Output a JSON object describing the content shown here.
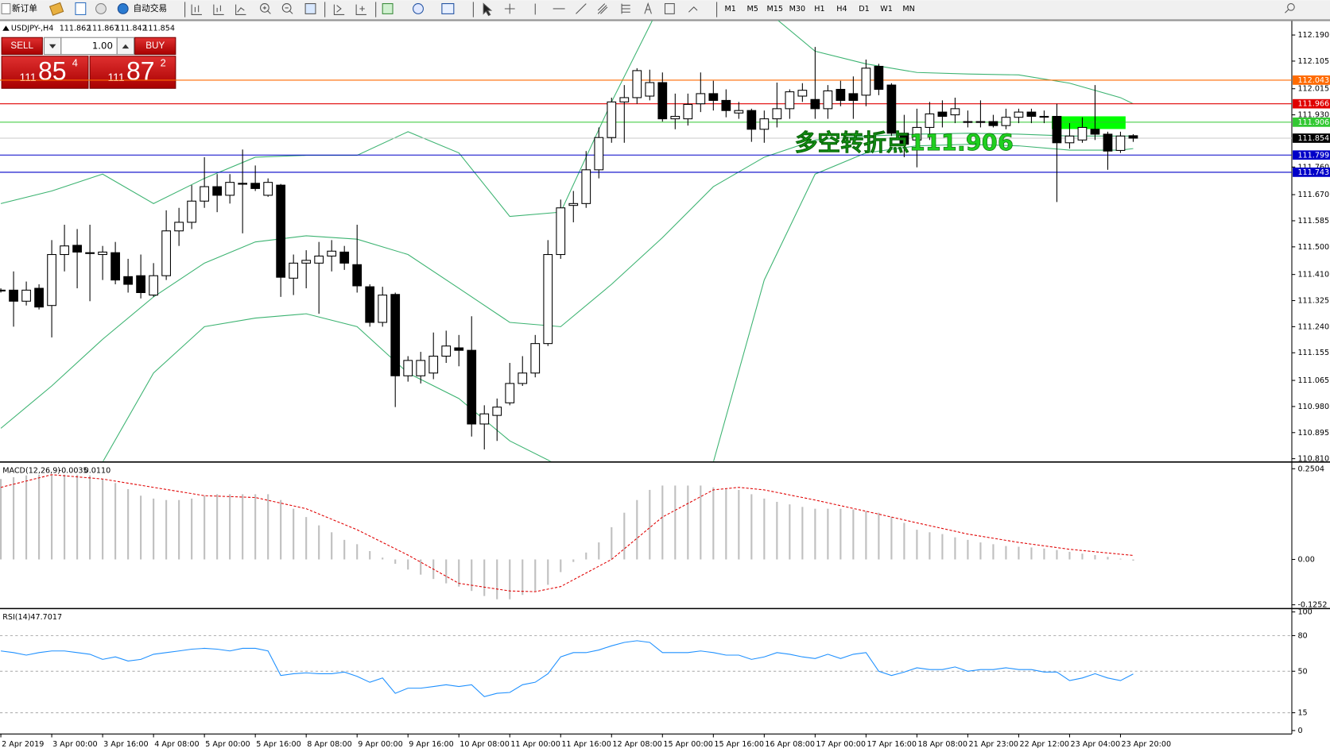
{
  "toolbar": {
    "new_order": "新订单",
    "auto_trading": "自动交易",
    "timeframes": [
      "M1",
      "M5",
      "M15",
      "M30",
      "H1",
      "H4",
      "D1",
      "W1",
      "MN"
    ]
  },
  "trade_panel": {
    "sell": "SELL",
    "buy": "BUY",
    "lots": "1.00",
    "bid": [
      "111",
      "85",
      "4"
    ],
    "ask": [
      "111",
      "87",
      "2"
    ]
  },
  "chart_data": [
    {
      "type": "candlestick",
      "symbol": "USDJPY-,H4",
      "ohlc": [
        111.862,
        111.867,
        111.842,
        111.854
      ],
      "up_color": "#ffffff",
      "down_color": "#000000",
      "categories": [
        "2 Apr 2019",
        null,
        null,
        null,
        "3 Apr 00:00",
        null,
        null,
        null,
        "3 Apr 16:00",
        null,
        null,
        null,
        "4 Apr 08:00",
        null,
        null,
        null,
        "5 Apr 00:00",
        null,
        null,
        null,
        "5 Apr 16:00",
        null,
        null,
        null,
        "8 Apr 08:00",
        null,
        null,
        null,
        "9 Apr 00:00",
        null,
        null,
        null,
        "9 Apr 16:00",
        null,
        null,
        null,
        "10 Apr 08:00",
        null,
        null,
        null,
        "11 Apr 00:00",
        null,
        null,
        null,
        "11 Apr 16:00",
        null,
        null,
        null,
        "12 Apr 08:00",
        null,
        null,
        null,
        "15 Apr 00:00",
        null,
        null,
        null,
        "15 Apr 16:00",
        null,
        null,
        null,
        "16 Apr 08:00",
        null,
        null,
        null,
        "17 Apr 00:00",
        null,
        null,
        null,
        "17 Apr 16:00",
        null,
        null,
        null,
        "18 Apr 08:00",
        null,
        null,
        null,
        "21 Apr 23:00",
        null,
        null,
        null,
        "22 Apr 12:00",
        null,
        null,
        null,
        "23 Apr 04:00",
        null,
        null,
        null,
        "23 Apr 20:00",
        null
      ],
      "candles": [
        [
          111.359,
          111.365,
          111.351,
          111.359
        ],
        [
          111.359,
          111.42,
          111.24,
          111.323
        ],
        [
          111.323,
          111.387,
          111.309,
          111.359
        ],
        [
          111.365,
          111.378,
          111.296,
          111.304
        ],
        [
          111.309,
          111.522,
          111.205,
          111.475
        ],
        [
          111.475,
          111.572,
          111.42,
          111.503
        ],
        [
          111.505,
          111.558,
          111.365,
          111.483
        ],
        [
          111.481,
          111.572,
          111.323,
          111.481
        ],
        [
          111.475,
          111.503,
          111.392,
          111.483
        ],
        [
          111.481,
          111.516,
          111.378,
          111.392
        ],
        [
          111.403,
          111.461,
          111.351,
          111.378
        ],
        [
          111.406,
          111.475,
          111.332,
          111.351
        ],
        [
          111.343,
          111.447,
          111.337,
          111.406
        ],
        [
          111.406,
          111.619,
          111.392,
          111.552
        ],
        [
          111.552,
          111.627,
          111.503,
          111.58
        ],
        [
          111.58,
          111.701,
          111.558,
          111.649
        ],
        [
          111.649,
          111.792,
          111.627,
          111.696
        ],
        [
          111.696,
          111.737,
          111.613,
          111.668
        ],
        [
          111.668,
          111.737,
          111.641,
          111.71
        ],
        [
          111.707,
          111.817,
          111.544,
          111.704
        ],
        [
          111.707,
          111.765,
          111.682,
          111.69
        ],
        [
          111.668,
          111.723,
          111.663,
          111.71
        ],
        [
          111.701,
          111.705,
          111.337,
          111.401
        ],
        [
          111.398,
          111.475,
          111.343,
          111.447
        ],
        [
          111.447,
          111.489,
          111.365,
          111.456
        ],
        [
          111.447,
          111.516,
          111.282,
          111.47
        ],
        [
          111.47,
          111.522,
          111.42,
          111.486
        ],
        [
          111.483,
          111.503,
          111.425,
          111.447
        ],
        [
          111.442,
          111.572,
          111.351,
          111.373
        ],
        [
          111.37,
          111.378,
          111.24,
          111.254
        ],
        [
          111.254,
          111.37,
          111.24,
          111.343
        ],
        [
          111.345,
          111.351,
          110.978,
          111.08
        ],
        [
          111.08,
          111.144,
          111.061,
          111.13
        ],
        [
          111.08,
          111.158,
          111.055,
          111.13
        ],
        [
          111.089,
          111.221,
          111.069,
          111.144
        ],
        [
          111.144,
          111.227,
          111.122,
          111.177
        ],
        [
          111.171,
          111.213,
          111.111,
          111.163
        ],
        [
          111.163,
          111.274,
          110.882,
          110.923
        ],
        [
          110.923,
          110.984,
          110.84,
          110.956
        ],
        [
          110.951,
          111.006,
          110.868,
          110.978
        ],
        [
          110.992,
          111.122,
          110.984,
          111.055
        ],
        [
          111.055,
          111.144,
          111.047,
          111.089
        ],
        [
          111.089,
          111.213,
          111.075,
          111.185
        ],
        [
          111.185,
          111.522,
          111.177,
          111.475
        ],
        [
          111.475,
          111.654,
          111.461,
          111.627
        ],
        [
          111.635,
          111.682,
          111.58,
          111.641
        ],
        [
          111.641,
          111.812,
          111.627,
          111.751
        ],
        [
          111.751,
          111.889,
          111.723,
          111.856
        ],
        [
          111.856,
          111.986,
          111.839,
          111.972
        ],
        [
          111.972,
          112.027,
          111.839,
          111.986
        ],
        [
          111.986,
          112.082,
          111.966,
          112.074
        ],
        [
          111.991,
          112.077,
          111.977,
          112.035
        ],
        [
          112.035,
          112.068,
          111.908,
          111.917
        ],
        [
          111.917,
          111.999,
          111.883,
          111.925
        ],
        [
          111.917,
          111.999,
          111.895,
          111.964
        ],
        [
          111.966,
          112.068,
          111.939,
          111.999
        ],
        [
          111.999,
          112.041,
          111.944,
          111.977
        ],
        [
          111.977,
          112.013,
          111.922,
          111.944
        ],
        [
          111.936,
          111.972,
          111.917,
          111.944
        ],
        [
          111.944,
          111.95,
          111.842,
          111.883
        ],
        [
          111.883,
          111.944,
          111.839,
          111.917
        ],
        [
          111.917,
          112.035,
          111.889,
          111.95
        ],
        [
          111.95,
          112.013,
          111.917,
          112.005
        ],
        [
          111.991,
          112.033,
          111.972,
          112.01
        ],
        [
          111.98,
          112.151,
          111.917,
          111.95
        ],
        [
          111.95,
          112.027,
          111.917,
          112.008
        ],
        [
          112.013,
          112.041,
          111.958,
          111.977
        ],
        [
          111.999,
          112.055,
          111.917,
          111.977
        ],
        [
          111.994,
          112.11,
          111.958,
          112.082
        ],
        [
          112.088,
          112.096,
          111.994,
          112.013
        ],
        [
          112.027,
          112.033,
          111.861,
          111.87
        ],
        [
          111.87,
          111.93,
          111.792,
          111.834
        ],
        [
          111.848,
          111.95,
          111.759,
          111.889
        ],
        [
          111.889,
          111.972,
          111.848,
          111.933
        ],
        [
          111.939,
          111.977,
          111.889,
          111.925
        ],
        [
          111.93,
          111.986,
          111.903,
          111.95
        ],
        [
          111.908,
          111.944,
          111.889,
          111.908
        ],
        [
          111.908,
          111.977,
          111.889,
          111.908
        ],
        [
          111.908,
          111.93,
          111.889,
          111.895
        ],
        [
          111.895,
          111.95,
          111.883,
          111.922
        ],
        [
          111.922,
          111.95,
          111.903,
          111.939
        ],
        [
          111.939,
          111.95,
          111.903,
          111.925
        ],
        [
          111.925,
          111.944,
          111.903,
          111.925
        ],
        [
          111.925,
          111.966,
          111.646,
          111.839
        ],
        [
          111.839,
          111.903,
          111.82,
          111.861
        ],
        [
          111.848,
          111.922,
          111.839,
          111.889
        ],
        [
          111.883,
          112.027,
          111.848,
          111.867
        ],
        [
          111.867,
          111.875,
          111.751,
          111.812
        ],
        [
          111.814,
          111.875,
          111.806,
          111.861
        ],
        [
          111.862,
          111.867,
          111.842,
          111.854
        ]
      ],
      "bands": {
        "color": "#3cb371",
        "x": [
          0,
          4,
          8,
          12,
          16,
          20,
          24,
          28,
          32,
          36,
          40,
          44,
          48,
          52,
          56,
          60,
          64,
          68,
          72,
          76,
          80,
          84,
          88,
          89
        ],
        "upper": [
          111.641,
          111.682,
          111.737,
          111.641,
          111.723,
          111.792,
          111.798,
          111.798,
          111.875,
          111.806,
          111.599,
          111.613,
          111.972,
          112.303,
          112.358,
          112.275,
          112.137,
          112.096,
          112.068,
          112.063,
          112.06,
          112.033,
          111.986,
          111.966
        ],
        "middle": [
          110.909,
          111.047,
          111.199,
          111.337,
          111.447,
          111.516,
          111.536,
          111.525,
          111.475,
          111.365,
          111.254,
          111.24,
          111.378,
          111.53,
          111.696,
          111.792,
          111.848,
          111.861,
          111.867,
          111.87,
          111.867,
          111.861,
          111.861,
          111.861
        ],
        "lower": [
          110.592,
          110.675,
          110.799,
          111.089,
          111.24,
          111.268,
          111.282,
          111.24,
          111.089,
          111.006,
          110.868,
          110.785,
          110.592,
          110.371,
          110.799,
          111.392,
          111.737,
          111.806,
          111.829,
          111.834,
          111.829,
          111.815,
          111.815,
          111.82
        ]
      },
      "levels": [
        {
          "value": 112.043,
          "color": "#ff6a00"
        },
        {
          "value": 111.966,
          "color": "#e00000"
        },
        {
          "value": 111.906,
          "color": "#32c832"
        },
        {
          "value": 111.854,
          "color": "#000000",
          "line_color": "#c8c8c8"
        },
        {
          "value": 111.799,
          "color": "#0000c8"
        },
        {
          "value": 111.743,
          "color": "#0000c8"
        }
      ],
      "annotation": {
        "text": "多空转折点111.906",
        "color": "#1fcf1f"
      },
      "ylim": [
        110.802,
        112.237
      ],
      "yticks": [
        {
          "value": 112.19,
          "label": "112.190"
        },
        112.105,
        112.015,
        {
          "value": 111.93,
          "label": "111.930"
        },
        {
          "value": 111.76,
          "label": "111.760"
        },
        {
          "value": 111.67,
          "label": "111.670"
        },
        111.585,
        {
          "value": 111.5,
          "label": "111.500"
        },
        {
          "value": 111.41,
          "label": "111.410"
        },
        111.325,
        {
          "value": 111.24,
          "label": "111.240"
        },
        111.155,
        111.065,
        {
          "value": 110.98,
          "label": "110.980"
        },
        110.895,
        {
          "value": 110.81,
          "label": "110.810"
        }
      ]
    },
    {
      "type": "macd",
      "label": "MACD(12,26,9)",
      "macd_value": -0.0035,
      "signal_value": {
        "value": 0.011,
        "label": "0.0110"
      },
      "bar_color": "#c0c0c0",
      "signal_color": "#e00000",
      "histogram": [
        0.222,
        0.227,
        0.232,
        0.234,
        0.234,
        0.234,
        0.234,
        0.232,
        0.222,
        0.211,
        0.194,
        0.176,
        0.168,
        0.164,
        0.164,
        0.168,
        0.176,
        0.18,
        0.18,
        0.18,
        0.18,
        0.18,
        0.164,
        0.14,
        0.117,
        0.094,
        0.075,
        0.054,
        0.042,
        0.023,
        0.005,
        -0.012,
        -0.028,
        -0.042,
        -0.054,
        -0.066,
        -0.075,
        -0.087,
        -0.101,
        -0.11,
        -0.11,
        -0.098,
        -0.087,
        -0.07,
        -0.035,
        -0.007,
        0.019,
        0.047,
        0.089,
        0.129,
        0.164,
        0.192,
        0.204,
        0.204,
        0.204,
        0.204,
        0.199,
        0.194,
        0.192,
        0.18,
        0.168,
        0.159,
        0.152,
        0.145,
        0.14,
        0.14,
        0.14,
        0.138,
        0.133,
        0.129,
        0.117,
        0.101,
        0.082,
        0.075,
        0.07,
        0.061,
        0.054,
        0.047,
        0.042,
        0.037,
        0.035,
        0.033,
        0.03,
        0.026,
        0.021,
        0.016,
        0.012,
        0.007,
        0.002,
        -0.0035
      ],
      "signal": {
        "x": [
          0,
          4,
          8,
          12,
          16,
          20,
          24,
          28,
          32,
          36,
          40,
          42,
          44,
          48,
          52,
          56,
          58,
          60,
          64,
          68,
          72,
          76,
          80,
          84,
          89
        ],
        "values": [
          0.199,
          0.234,
          0.222,
          0.199,
          0.176,
          0.171,
          0.14,
          0.082,
          0.012,
          -0.066,
          -0.087,
          -0.089,
          -0.075,
          0,
          0.117,
          0.192,
          0.199,
          0.192,
          0.164,
          0.133,
          0.101,
          0.07,
          0.047,
          0.028,
          0.011
        ]
      },
      "ylim": [
        -0.131,
        0.262
      ],
      "yticks": [
        0.2504,
        {
          "value": 0,
          "label": "0.00"
        },
        -0.1252
      ]
    },
    {
      "type": "line",
      "label": "RSI(14)",
      "value": 47.7017,
      "color": "#1e90ff",
      "values": [
        67.1,
        65.7,
        63.6,
        65.7,
        67.1,
        67.1,
        65.7,
        64.3,
        60.0,
        62.1,
        58.6,
        60.0,
        64.3,
        65.7,
        67.1,
        68.6,
        69.3,
        68.6,
        67.1,
        69.3,
        69.3,
        67.1,
        46.4,
        47.9,
        48.6,
        47.9,
        47.9,
        49.3,
        45.7,
        40.7,
        44.3,
        31.4,
        35.7,
        35.7,
        37.1,
        38.6,
        37.1,
        38.6,
        28.6,
        31.4,
        32.1,
        38.6,
        40.7,
        47.9,
        62.1,
        65.7,
        65.7,
        67.9,
        71.4,
        74.3,
        75.7,
        74.3,
        65.7,
        65.7,
        65.7,
        67.1,
        65.7,
        63.6,
        63.6,
        60.0,
        62.1,
        65.7,
        64.3,
        62.1,
        60.7,
        64.3,
        60.7,
        64.3,
        65.7,
        50.0,
        46.4,
        49.3,
        52.9,
        51.4,
        51.4,
        53.6,
        50.0,
        51.4,
        51.4,
        52.9,
        51.4,
        51.4,
        49.3,
        49.3,
        42.1,
        44.3,
        47.9,
        44.3,
        42.1,
        47.7017
      ],
      "level_lines": [
        80,
        50,
        15
      ],
      "ylim": [
        -2.9,
        101.4
      ],
      "yticks": [
        100,
        80,
        50,
        15,
        0
      ]
    }
  ]
}
